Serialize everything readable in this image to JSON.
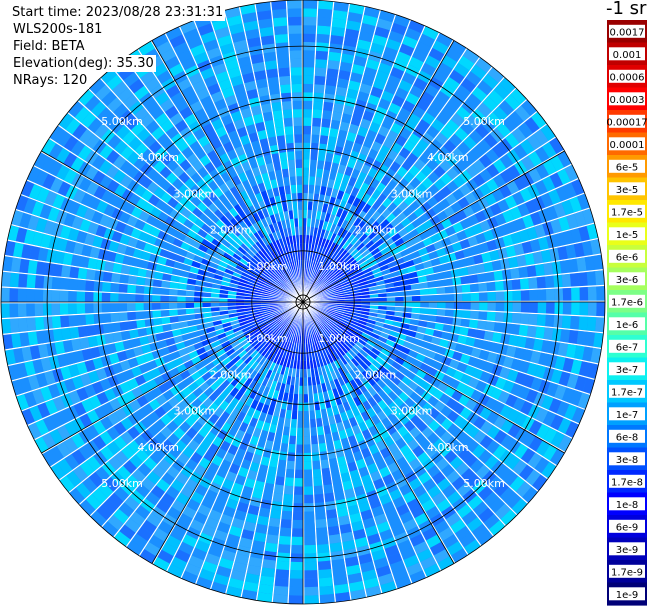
{
  "info": {
    "start_time": "Start time: 2023/08/28 23:31:31",
    "instrument": "WLS200s-181",
    "field": "Field: BETA",
    "elevation": "Elevation(deg): 35.30",
    "nrays": "NRays: 120"
  },
  "chart_data": {
    "type": "heatmap",
    "projection": "polar (PPI scan)",
    "field": "BETA",
    "n_rays": 120,
    "range_rings_km": [
      1,
      2,
      3,
      4,
      5
    ],
    "range_ring_labels": [
      "1.00km",
      "2.00km",
      "3.00km",
      "4.00km",
      "5.00km"
    ],
    "max_range_km": 5.9,
    "colorbar": {
      "unit_label": "-1 sr",
      "tick_labels": [
        "0.0017",
        "0.001",
        "0.0006",
        "0.0003",
        "0.00017",
        "0.0001",
        "6e-5",
        "3e-5",
        "1.7e-5",
        "1e-5",
        "6e-6",
        "3e-6",
        "1.7e-6",
        "1e-6",
        "6e-7",
        "3e-7",
        "1.7e-7",
        "1e-7",
        "6e-8",
        "3e-8",
        "1.7e-8",
        "1e-8",
        "6e-9",
        "3e-9",
        "1.7e-9",
        "1e-9"
      ],
      "colors": [
        "#9a0000",
        "#c00000",
        "#e00000",
        "#ff0000",
        "#ff3a00",
        "#ff6a00",
        "#ff9a00",
        "#ffc400",
        "#ffe800",
        "#eaff1a",
        "#c8ff3c",
        "#a6ff5e",
        "#7cff86",
        "#55ffa8",
        "#2effd2",
        "#0cf0f0",
        "#00c8ff",
        "#00a0ff",
        "#0078ff",
        "#0050ff",
        "#0028ff",
        "#0000ff",
        "#0000dd",
        "#0000bb",
        "#000099",
        "#000077"
      ]
    }
  },
  "colors": {
    "near_field": "#0030ff",
    "far_field_main": "#1a8fff",
    "far_field_alt": "#00c0ff",
    "grid_lines": "#000000",
    "background": "#ffffff"
  }
}
